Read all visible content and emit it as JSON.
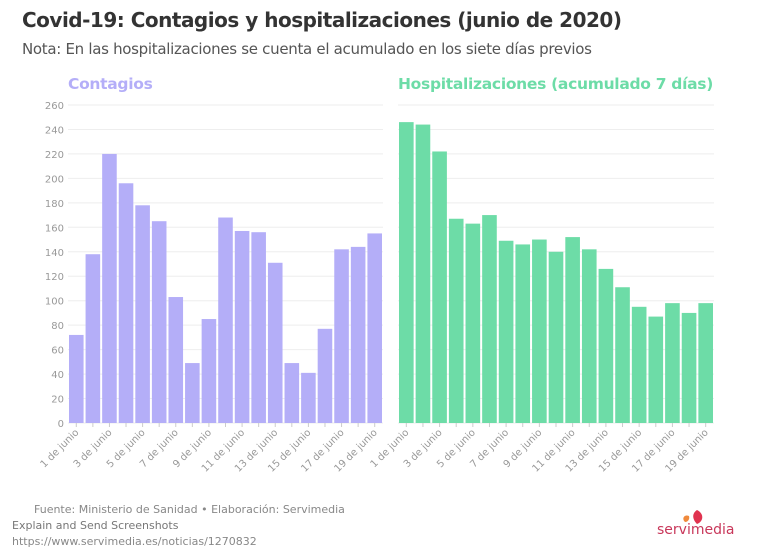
{
  "title": "Covid-19: Contagios y hospitalizaciones (junio de 2020)",
  "subtitle": "Nota: En las hospitalizaciones se cuenta el acumulado en los siete días previos",
  "footer": {
    "source": "Fuente: Ministerio de Sanidad • Elaboración: Servimedia",
    "overlay": "Explain and Send Screenshots",
    "url": "https://www.servimedia.es/noticias/1270832",
    "logo": "servimedia"
  },
  "chart_data": [
    {
      "type": "bar",
      "title": "Contagios",
      "color": "#b4aef8",
      "ylim": [
        0,
        260
      ],
      "yticks": [
        0,
        20,
        40,
        60,
        80,
        100,
        120,
        140,
        160,
        180,
        200,
        220,
        240,
        260
      ],
      "grid": true,
      "categories": [
        "1 de junio",
        "2 de junio",
        "3 de junio",
        "4 de junio",
        "5 de junio",
        "6 de junio",
        "7 de junio",
        "8 de junio",
        "9 de junio",
        "10 de junio",
        "11 de junio",
        "12 de junio",
        "13 de junio",
        "14 de junio",
        "15 de junio",
        "16 de junio",
        "17 de junio",
        "18 de junio",
        "19 de junio"
      ],
      "xtick_labels": [
        "1 de junio",
        "3 de junio",
        "5 de junio",
        "7 de junio",
        "9 de junio",
        "11 de junio",
        "13 de junio",
        "15 de junio",
        "17 de junio",
        "19 de junio"
      ],
      "values": [
        72,
        138,
        220,
        196,
        178,
        165,
        103,
        49,
        85,
        168,
        157,
        156,
        131,
        49,
        41,
        77,
        142,
        144,
        155
      ]
    },
    {
      "type": "bar",
      "title": "Hospitalizaciones (acumulado 7 días)",
      "color": "#6ddca7",
      "ylim": [
        0,
        260
      ],
      "grid": true,
      "categories": [
        "1 de junio",
        "2 de junio",
        "3 de junio",
        "4 de junio",
        "5 de junio",
        "6 de junio",
        "7 de junio",
        "8 de junio",
        "9 de junio",
        "10 de junio",
        "11 de junio",
        "12 de junio",
        "13 de junio",
        "14 de junio",
        "15 de junio",
        "16 de junio",
        "17 de junio",
        "18 de junio",
        "19 de junio"
      ],
      "xtick_labels": [
        "1 de junio",
        "3 de junio",
        "5 de junio",
        "7 de junio",
        "9 de junio",
        "11 de junio",
        "13 de junio",
        "15 de junio",
        "17 de junio",
        "19 de junio"
      ],
      "values": [
        246,
        244,
        222,
        167,
        163,
        170,
        149,
        146,
        150,
        140,
        152,
        142,
        126,
        111,
        95,
        87,
        98,
        90,
        98
      ]
    }
  ]
}
